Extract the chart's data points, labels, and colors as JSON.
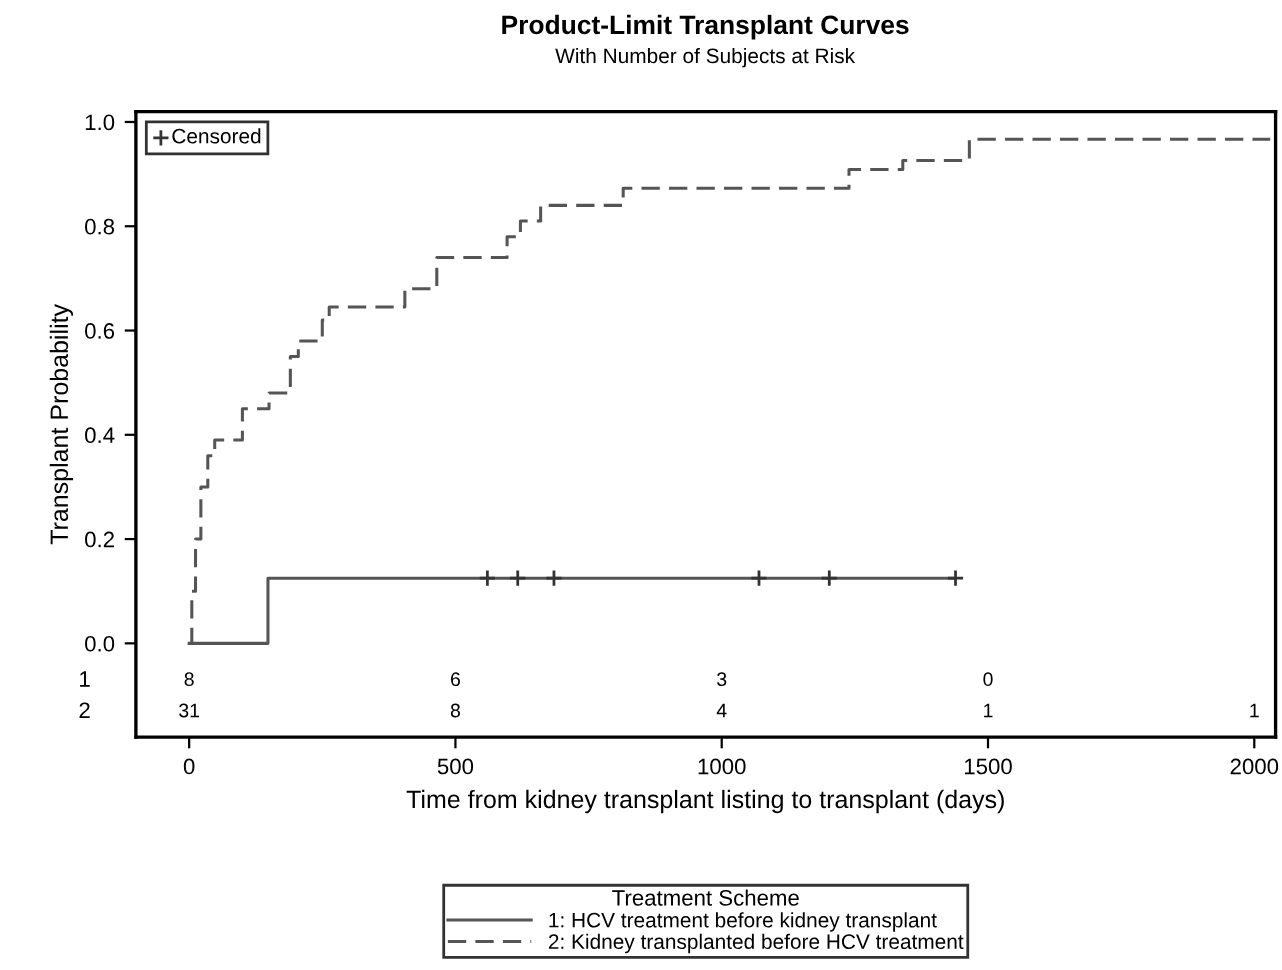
{
  "chart_data": {
    "type": "step",
    "title": "Product-Limit Transplant Curves",
    "subtitle": "With Number of Subjects at Risk",
    "xlabel": "Time from kidney transplant listing to transplant (days)",
    "ylabel": "Transplant Probability",
    "legend_title": "Treatment Scheme",
    "series": [
      {
        "name": "1: HCV treatment before kidney transplant",
        "color": "#555555",
        "line_style": "solid",
        "x": [
          0,
          148,
          1439
        ],
        "values": [
          0,
          0.125,
          0.125
        ]
      },
      {
        "name": "2: Kidney transplanted before HCV treatment",
        "color": "#555555",
        "line_style": "dashed",
        "x": [
          0,
          5,
          12,
          22,
          35,
          48,
          100,
          150,
          190,
          205,
          250,
          263,
          405,
          465,
          597,
          622,
          660,
          815,
          1239,
          1340,
          1465,
          2030
        ],
        "values": [
          0,
          0.1,
          0.2,
          0.3,
          0.36,
          0.39,
          0.45,
          0.48,
          0.55,
          0.58,
          0.62,
          0.645,
          0.68,
          0.74,
          0.78,
          0.81,
          0.84,
          0.873,
          0.909,
          0.926,
          0.967,
          0.967
        ]
      },
      {
        "name": "Censored",
        "type": "scatter",
        "marker": "cross",
        "color": "#333333",
        "x": [
          560,
          617,
          685,
          1070,
          1202,
          1439
        ],
        "values": [
          0.125,
          0.125,
          0.125,
          0.125,
          0.125,
          0.125
        ]
      }
    ],
    "xlim": [
      -100,
      2040
    ],
    "ylim": [
      -0.18,
      1.02
    ],
    "xticks": [
      0,
      500,
      1000,
      1500,
      2000
    ],
    "yticks": [
      {
        "value": 0,
        "label": "0.0"
      },
      0.2,
      0.4,
      0.6,
      0.8,
      {
        "value": 1,
        "label": "1.0"
      }
    ],
    "legend": "bottom",
    "grid": false,
    "annotations": [
      "1",
      "8",
      "6",
      "3",
      "0",
      "2",
      "31",
      "8",
      "4",
      "1",
      "1"
    ]
  }
}
